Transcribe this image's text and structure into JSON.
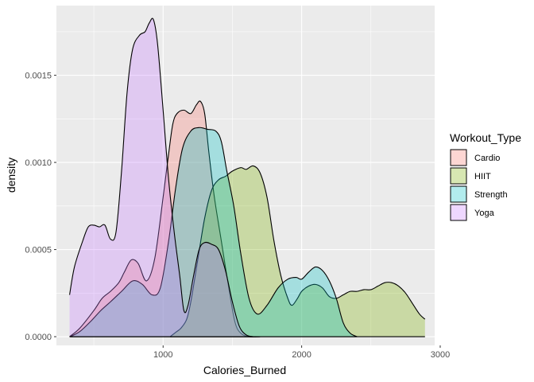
{
  "chart_data": {
    "type": "area",
    "subtype": "density",
    "xlabel": "Calories_Burned",
    "ylabel": "density",
    "xlim": [
      230,
      2960
    ],
    "ylim": [
      -5e-05,
      0.0019
    ],
    "x_ticks": [
      1000,
      2000,
      3000
    ],
    "x_tick_labels": [
      "1000",
      "2000",
      "3000"
    ],
    "y_ticks": [
      0,
      0.0005,
      0.001,
      0.0015
    ],
    "y_tick_labels": [
      "0.0000",
      "0.0005",
      "0.0010",
      "0.0015"
    ],
    "grid": true,
    "legend": {
      "title": "Workout_Type",
      "position": "right"
    },
    "series": [
      {
        "name": "Cardio",
        "color": "#F8766D",
        "points": [
          [
            325,
            0
          ],
          [
            400,
            5e-05
          ],
          [
            500,
            0.00015
          ],
          [
            560,
            0.00022
          ],
          [
            620,
            0.00026
          ],
          [
            680,
            0.00031
          ],
          [
            720,
            0.00037
          ],
          [
            770,
            0.00044
          ],
          [
            820,
            0.00042
          ],
          [
            880,
            0.00032
          ],
          [
            940,
            0.00045
          ],
          [
            1000,
            0.0008
          ],
          [
            1040,
            0.00105
          ],
          [
            1070,
            0.00122
          ],
          [
            1100,
            0.00128
          ],
          [
            1150,
            0.0013
          ],
          [
            1200,
            0.00128
          ],
          [
            1240,
            0.00133
          ],
          [
            1270,
            0.00135
          ],
          [
            1300,
            0.00128
          ],
          [
            1330,
            0.00106
          ],
          [
            1370,
            0.0008
          ],
          [
            1420,
            0.00055
          ],
          [
            1480,
            0.00025
          ],
          [
            1520,
            8e-05
          ],
          [
            1560,
            2e-05
          ],
          [
            1620,
            0
          ],
          [
            1700,
            0
          ]
        ]
      },
      {
        "name": "HIIT",
        "color": "#7CAE00",
        "points": [
          [
            1050,
            0
          ],
          [
            1100,
            3e-05
          ],
          [
            1130,
            5e-05
          ],
          [
            1170,
            0.0001
          ],
          [
            1200,
            0.0002
          ],
          [
            1250,
            0.00044
          ],
          [
            1300,
            0.00068
          ],
          [
            1350,
            0.00084
          ],
          [
            1400,
            0.0009
          ],
          [
            1450,
            0.00092
          ],
          [
            1500,
            0.00095
          ],
          [
            1560,
            0.00097
          ],
          [
            1600,
            0.00096
          ],
          [
            1650,
            0.00098
          ],
          [
            1700,
            0.00094
          ],
          [
            1750,
            0.0008
          ],
          [
            1800,
            0.00055
          ],
          [
            1850,
            0.00035
          ],
          [
            1900,
            0.00022
          ],
          [
            1930,
            0.00018
          ],
          [
            1970,
            0.00022
          ],
          [
            2000,
            0.00026
          ],
          [
            2050,
            0.00029
          ],
          [
            2100,
            0.0003
          ],
          [
            2150,
            0.00028
          ],
          [
            2200,
            0.00023
          ],
          [
            2250,
            0.00022
          ],
          [
            2300,
            0.00024
          ],
          [
            2350,
            0.00026
          ],
          [
            2400,
            0.00026
          ],
          [
            2450,
            0.00027
          ],
          [
            2500,
            0.00027
          ],
          [
            2550,
            0.00029
          ],
          [
            2600,
            0.00031
          ],
          [
            2650,
            0.00031
          ],
          [
            2700,
            0.00029
          ],
          [
            2750,
            0.00025
          ],
          [
            2800,
            0.00019
          ],
          [
            2850,
            0.00013
          ],
          [
            2890,
            0.0001
          ]
        ]
      },
      {
        "name": "Strength",
        "color": "#00BFC4",
        "points": [
          [
            330,
            0
          ],
          [
            400,
            3e-05
          ],
          [
            480,
            9e-05
          ],
          [
            550,
            0.00015
          ],
          [
            620,
            0.0002
          ],
          [
            700,
            0.00026
          ],
          [
            780,
            0.00032
          ],
          [
            850,
            0.0003
          ],
          [
            920,
            0.00024
          ],
          [
            980,
            0.00028
          ],
          [
            1040,
            0.00055
          ],
          [
            1090,
            0.00085
          ],
          [
            1140,
            0.00108
          ],
          [
            1200,
            0.00118
          ],
          [
            1260,
            0.0012
          ],
          [
            1320,
            0.00119
          ],
          [
            1380,
            0.00118
          ],
          [
            1420,
            0.00112
          ],
          [
            1460,
            0.00095
          ],
          [
            1510,
            0.00075
          ],
          [
            1560,
            0.00048
          ],
          [
            1620,
            0.00022
          ],
          [
            1680,
            0.00013
          ],
          [
            1750,
            0.00018
          ],
          [
            1830,
            0.00028
          ],
          [
            1900,
            0.00033
          ],
          [
            1960,
            0.00034
          ],
          [
            2000,
            0.00033
          ],
          [
            2050,
            0.00037
          ],
          [
            2100,
            0.0004
          ],
          [
            2150,
            0.00038
          ],
          [
            2200,
            0.00032
          ],
          [
            2250,
            0.00022
          ],
          [
            2300,
            8e-05
          ],
          [
            2350,
            2e-05
          ],
          [
            2400,
            0
          ]
        ]
      },
      {
        "name": "Yoga",
        "color": "#C77CFF",
        "points": [
          [
            325,
            0.00024
          ],
          [
            360,
            0.0004
          ],
          [
            420,
            0.00055
          ],
          [
            460,
            0.00063
          ],
          [
            500,
            0.00064
          ],
          [
            540,
            0.00063
          ],
          [
            580,
            0.00064
          ],
          [
            620,
            0.00056
          ],
          [
            660,
            0.0006
          ],
          [
            700,
            0.00095
          ],
          [
            740,
            0.0014
          ],
          [
            780,
            0.00165
          ],
          [
            830,
            0.00173
          ],
          [
            870,
            0.00175
          ],
          [
            900,
            0.0018
          ],
          [
            930,
            0.00182
          ],
          [
            960,
            0.00168
          ],
          [
            1000,
            0.0013
          ],
          [
            1040,
            0.0009
          ],
          [
            1080,
            0.0006
          ],
          [
            1120,
            0.00035
          ],
          [
            1150,
            0.00015
          ],
          [
            1180,
            0.00018
          ],
          [
            1220,
            0.00035
          ],
          [
            1260,
            0.0005
          ],
          [
            1300,
            0.00054
          ],
          [
            1350,
            0.00053
          ],
          [
            1400,
            0.0005
          ],
          [
            1450,
            0.00038
          ],
          [
            1500,
            0.0002
          ],
          [
            1550,
            6e-05
          ],
          [
            1600,
            1e-05
          ],
          [
            1650,
            0
          ]
        ]
      }
    ]
  }
}
